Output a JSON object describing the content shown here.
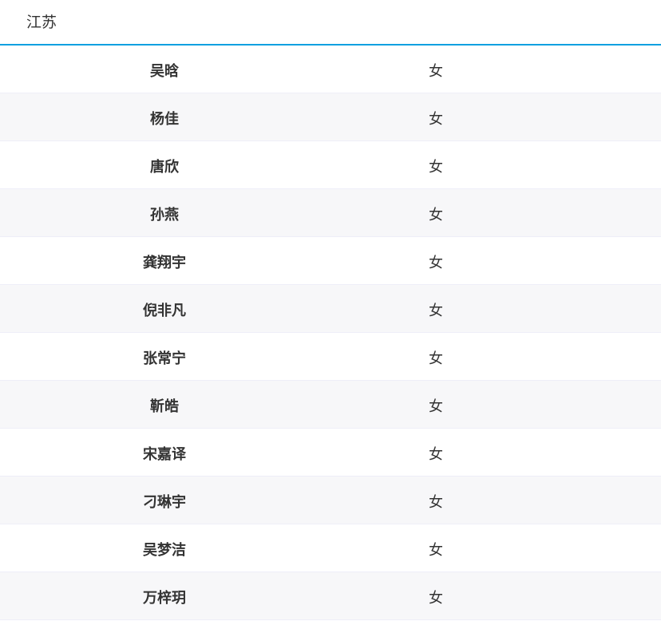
{
  "header": {
    "title": "江苏"
  },
  "rows": [
    {
      "name": "吴晗",
      "gender": "女"
    },
    {
      "name": "杨佳",
      "gender": "女"
    },
    {
      "name": "唐欣",
      "gender": "女"
    },
    {
      "name": "孙燕",
      "gender": "女"
    },
    {
      "name": "龚翔宇",
      "gender": "女"
    },
    {
      "name": "倪非凡",
      "gender": "女"
    },
    {
      "name": "张常宁",
      "gender": "女"
    },
    {
      "name": "靳皓",
      "gender": "女"
    },
    {
      "name": "宋嘉译",
      "gender": "女"
    },
    {
      "name": "刁琳宇",
      "gender": "女"
    },
    {
      "name": "吴梦洁",
      "gender": "女"
    },
    {
      "name": "万梓玥",
      "gender": "女"
    }
  ],
  "colors": {
    "accent": "#0aa0e0",
    "stripe": "#f7f7f9"
  }
}
